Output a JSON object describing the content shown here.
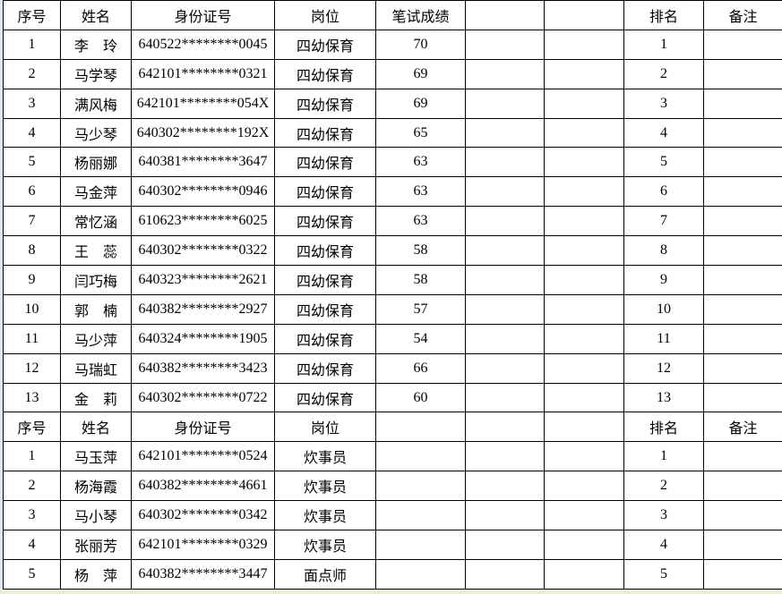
{
  "page": {
    "background_color": "#ffffff",
    "border_color": "#000000",
    "left_strip_color": "#dce6f2",
    "bottom_strip_color": "#e9efd9"
  },
  "table": {
    "sections": [
      {
        "header": [
          "序号",
          "姓名",
          "身份证号",
          "岗位",
          "笔试成绩",
          "",
          "",
          "排名",
          "备注"
        ],
        "rows": [
          [
            "1",
            "李　玲",
            "640522********0045",
            "四幼保育",
            "70",
            "",
            "",
            "1",
            ""
          ],
          [
            "2",
            "马学琴",
            "642101********0321",
            "四幼保育",
            "69",
            "",
            "",
            "2",
            ""
          ],
          [
            "3",
            "满风梅",
            "642101********054X",
            "四幼保育",
            "69",
            "",
            "",
            "3",
            ""
          ],
          [
            "4",
            "马少琴",
            "640302********192X",
            "四幼保育",
            "65",
            "",
            "",
            "4",
            ""
          ],
          [
            "5",
            "杨丽娜",
            "640381********3647",
            "四幼保育",
            "63",
            "",
            "",
            "5",
            ""
          ],
          [
            "6",
            "马金萍",
            "640302********0946",
            "四幼保育",
            "63",
            "",
            "",
            "6",
            ""
          ],
          [
            "7",
            "常忆涵",
            "610623********6025",
            "四幼保育",
            "63",
            "",
            "",
            "7",
            ""
          ],
          [
            "8",
            "王　蕊",
            "640302********0322",
            "四幼保育",
            "58",
            "",
            "",
            "8",
            ""
          ],
          [
            "9",
            "闫巧梅",
            "640323********2621",
            "四幼保育",
            "58",
            "",
            "",
            "9",
            ""
          ],
          [
            "10",
            "郭　楠",
            "640382********2927",
            "四幼保育",
            "57",
            "",
            "",
            "10",
            ""
          ],
          [
            "11",
            "马少萍",
            "640324********1905",
            "四幼保育",
            "54",
            "",
            "",
            "11",
            ""
          ],
          [
            "12",
            "马瑞虹",
            "640382********3423",
            "四幼保育",
            "66",
            "",
            "",
            "12",
            ""
          ],
          [
            "13",
            "金　莉",
            "640302********0722",
            "四幼保育",
            "60",
            "",
            "",
            "13",
            ""
          ]
        ]
      },
      {
        "header": [
          "序号",
          "姓名",
          "身份证号",
          "岗位",
          "",
          "",
          "",
          "排名",
          "备注"
        ],
        "rows": [
          [
            "1",
            "马玉萍",
            "642101********0524",
            "炊事员",
            "",
            "",
            "",
            "1",
            ""
          ],
          [
            "2",
            "杨海霞",
            "640382********4661",
            "炊事员",
            "",
            "",
            "",
            "2",
            ""
          ],
          [
            "3",
            "马小琴",
            "640302********0342",
            "炊事员",
            "",
            "",
            "",
            "3",
            ""
          ],
          [
            "4",
            "张丽芳",
            "642101********0329",
            "炊事员",
            "",
            "",
            "",
            "4",
            ""
          ],
          [
            "5",
            "杨　萍",
            "640382********3447",
            "面点师",
            "",
            "",
            "",
            "5",
            ""
          ]
        ]
      }
    ]
  }
}
